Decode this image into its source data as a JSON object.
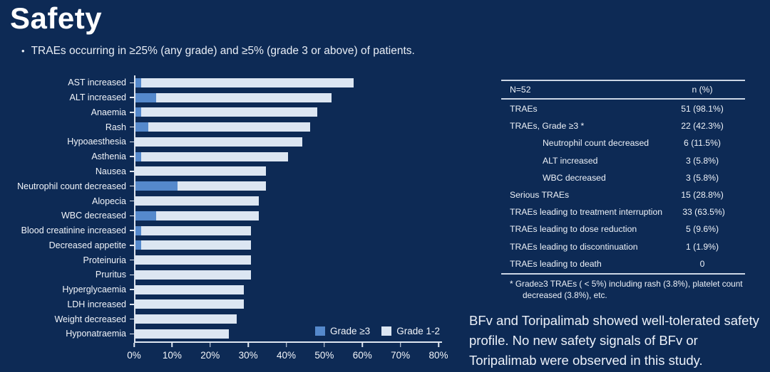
{
  "theme": {
    "background": "#0d2a55",
    "text": "#ffffff",
    "axis_color": "#dfe6f0"
  },
  "slide": {
    "title": "Safety",
    "bullet": "TRAEs occurring in ≥25% (any grade) and ≥5% (grade 3 or above) of patients.",
    "conclusion": "BFv and Toripalimab showed well-tolerated safety profile. No new safety signals of BFv or Toripalimab were observed in this study."
  },
  "chart_data": {
    "type": "bar",
    "orientation": "horizontal",
    "stacked": true,
    "title": "",
    "xlabel": "",
    "ylabel": "",
    "xlim": [
      0,
      80
    ],
    "x_ticks": [
      "0%",
      "10%",
      "20%",
      "30%",
      "40%",
      "50%",
      "60%",
      "70%",
      "80%"
    ],
    "grid": false,
    "legend_position": "inside-bottom-right",
    "categories": [
      "AST increased",
      "ALT increased",
      "Anaemia",
      "Rash",
      "Hypoaesthesia",
      "Asthenia",
      "Nausea",
      "Neutrophil count decreased",
      "Alopecia",
      "WBC decreased",
      "Blood creatinine increased",
      "Decreased appetite",
      "Proteinuria",
      "Pruritus",
      "Hyperglycaemia",
      "LDH increased",
      "Weight decreased",
      "Hyponatraemia"
    ],
    "series": [
      {
        "name": "Grade ≥3",
        "color": "#5589cc",
        "values": [
          1.9,
          5.8,
          1.9,
          3.8,
          0,
          1.9,
          0,
          11.5,
          0,
          5.8,
          1.9,
          1.9,
          0,
          0,
          0,
          0,
          0,
          0
        ]
      },
      {
        "name": "Grade 1-2",
        "color": "#dce6f2",
        "values": [
          55.8,
          46.1,
          46.2,
          42.4,
          44.2,
          38.5,
          34.6,
          23.1,
          32.7,
          26.9,
          28.9,
          28.9,
          30.8,
          30.8,
          28.8,
          28.8,
          26.9,
          25.0
        ]
      }
    ]
  },
  "table": {
    "header": {
      "left": "N=52",
      "right": "n (%)"
    },
    "rows": [
      {
        "label": "TRAEs",
        "value": "51 (98.1%)",
        "indent": false
      },
      {
        "label": "TRAEs, Grade ≥3 *",
        "value": "22 (42.3%)",
        "indent": false
      },
      {
        "label": "Neutrophil count decreased",
        "value": "6 (11.5%)",
        "indent": true
      },
      {
        "label": "ALT increased",
        "value": "3 (5.8%)",
        "indent": true
      },
      {
        "label": "WBC decreased",
        "value": "3 (5.8%)",
        "indent": true
      },
      {
        "label": "Serious TRAEs",
        "value": "15 (28.8%)",
        "indent": false
      },
      {
        "label": "TRAEs leading to treatment interruption",
        "value": "33 (63.5%)",
        "indent": false
      },
      {
        "label": "TRAEs leading to dose reduction",
        "value": "5 (9.6%)",
        "indent": false
      },
      {
        "label": "TRAEs leading to discontinuation",
        "value": "1 (1.9%)",
        "indent": false
      },
      {
        "label": "TRAEs leading to death",
        "value": "0",
        "indent": false
      }
    ],
    "footnote": "* Grade≥3 TRAEs ( < 5%) including rash (3.8%), platelet count decreased (3.8%), etc."
  }
}
